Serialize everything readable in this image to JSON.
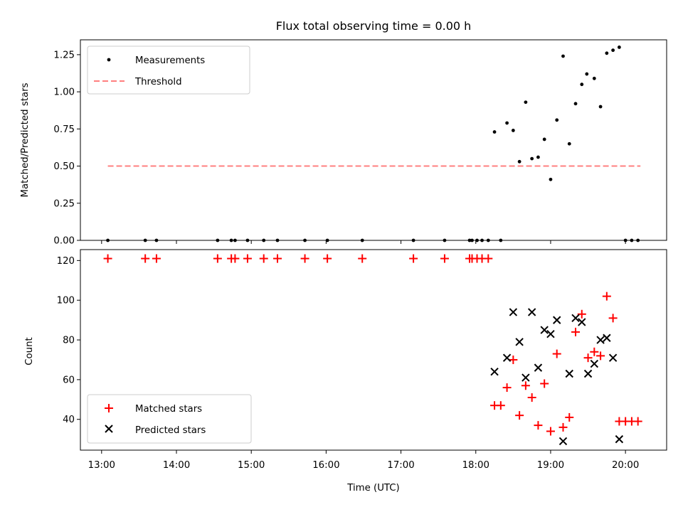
{
  "chart_data": [
    {
      "type": "scatter",
      "title": "Flux total observing time = 0.00 h",
      "xlabel": "",
      "ylabel": "Matched/Predicted stars",
      "ylim": [
        0,
        1.35
      ],
      "xlim": [
        "12:43",
        "20:33"
      ],
      "yticks": [
        "0.00",
        "0.25",
        "0.50",
        "0.75",
        "1.00",
        "1.25"
      ],
      "legend_position": "upper-left",
      "series": [
        {
          "name": "Measurements",
          "marker": "dot",
          "color": "#000000",
          "points": [
            {
              "x": "13:05",
              "y": 0
            },
            {
              "x": "13:35",
              "y": 0
            },
            {
              "x": "13:44",
              "y": 0
            },
            {
              "x": "14:33",
              "y": 0
            },
            {
              "x": "14:44",
              "y": 0
            },
            {
              "x": "14:47",
              "y": 0
            },
            {
              "x": "14:57",
              "y": 0
            },
            {
              "x": "15:10",
              "y": 0
            },
            {
              "x": "15:21",
              "y": 0
            },
            {
              "x": "15:43",
              "y": 0
            },
            {
              "x": "16:01",
              "y": 0
            },
            {
              "x": "16:29",
              "y": 0
            },
            {
              "x": "17:10",
              "y": 0
            },
            {
              "x": "17:35",
              "y": 0
            },
            {
              "x": "17:55",
              "y": 0
            },
            {
              "x": "17:57",
              "y": 0
            },
            {
              "x": "18:01",
              "y": 0
            },
            {
              "x": "18:05",
              "y": 0
            },
            {
              "x": "18:10",
              "y": 0
            },
            {
              "x": "18:20",
              "y": 0
            },
            {
              "x": "18:15",
              "y": 0.73
            },
            {
              "x": "18:25",
              "y": 0.79
            },
            {
              "x": "18:30",
              "y": 0.74
            },
            {
              "x": "18:35",
              "y": 0.53
            },
            {
              "x": "18:40",
              "y": 0.93
            },
            {
              "x": "18:45",
              "y": 0.55
            },
            {
              "x": "18:50",
              "y": 0.56
            },
            {
              "x": "18:55",
              "y": 0.68
            },
            {
              "x": "19:00",
              "y": 0.41
            },
            {
              "x": "19:05",
              "y": 0.81
            },
            {
              "x": "19:10",
              "y": 1.24
            },
            {
              "x": "19:15",
              "y": 0.65
            },
            {
              "x": "19:20",
              "y": 0.92
            },
            {
              "x": "19:25",
              "y": 1.05
            },
            {
              "x": "19:29",
              "y": 1.12
            },
            {
              "x": "19:35",
              "y": 1.09
            },
            {
              "x": "19:40",
              "y": 0.9
            },
            {
              "x": "19:45",
              "y": 1.26
            },
            {
              "x": "19:50",
              "y": 1.28
            },
            {
              "x": "19:55",
              "y": 1.3
            },
            {
              "x": "20:00",
              "y": 0
            },
            {
              "x": "20:05",
              "y": 0
            },
            {
              "x": "20:10",
              "y": 0
            }
          ]
        },
        {
          "name": "Threshold",
          "marker": "dashed-line",
          "color": "#ff7f7f",
          "points": [
            {
              "x": "13:05",
              "y": 0.5
            },
            {
              "x": "20:12",
              "y": 0.5
            }
          ]
        }
      ]
    },
    {
      "type": "scatter",
      "title": "",
      "xlabel": "Time (UTC)",
      "ylabel": "Count",
      "ylim": [
        24.5,
        125.5
      ],
      "xlim": [
        "12:43",
        "20:33"
      ],
      "yticks": [
        "40",
        "60",
        "80",
        "100",
        "120"
      ],
      "xticks": [
        "13:00",
        "14:00",
        "15:00",
        "16:00",
        "17:00",
        "18:00",
        "19:00",
        "20:00"
      ],
      "legend_position": "lower-left",
      "series": [
        {
          "name": "Matched stars",
          "marker": "plus",
          "color": "#ff0000",
          "points": [
            {
              "x": "13:05",
              "y": 121
            },
            {
              "x": "13:35",
              "y": 121
            },
            {
              "x": "13:44",
              "y": 121
            },
            {
              "x": "14:33",
              "y": 121
            },
            {
              "x": "14:44",
              "y": 121
            },
            {
              "x": "14:47",
              "y": 121
            },
            {
              "x": "14:57",
              "y": 121
            },
            {
              "x": "15:10",
              "y": 121
            },
            {
              "x": "15:21",
              "y": 121
            },
            {
              "x": "15:43",
              "y": 121
            },
            {
              "x": "16:01",
              "y": 121
            },
            {
              "x": "16:29",
              "y": 121
            },
            {
              "x": "17:10",
              "y": 121
            },
            {
              "x": "17:35",
              "y": 121
            },
            {
              "x": "17:55",
              "y": 121
            },
            {
              "x": "17:57",
              "y": 121
            },
            {
              "x": "18:01",
              "y": 121
            },
            {
              "x": "18:05",
              "y": 121
            },
            {
              "x": "18:10",
              "y": 121
            },
            {
              "x": "18:15",
              "y": 47
            },
            {
              "x": "18:20",
              "y": 47
            },
            {
              "x": "18:25",
              "y": 56
            },
            {
              "x": "18:30",
              "y": 70
            },
            {
              "x": "18:35",
              "y": 42
            },
            {
              "x": "18:40",
              "y": 57
            },
            {
              "x": "18:45",
              "y": 51
            },
            {
              "x": "18:50",
              "y": 37
            },
            {
              "x": "18:55",
              "y": 58
            },
            {
              "x": "19:00",
              "y": 34
            },
            {
              "x": "19:05",
              "y": 73
            },
            {
              "x": "19:10",
              "y": 36
            },
            {
              "x": "19:15",
              "y": 41
            },
            {
              "x": "19:20",
              "y": 84
            },
            {
              "x": "19:25",
              "y": 93
            },
            {
              "x": "19:30",
              "y": 71
            },
            {
              "x": "19:35",
              "y": 74
            },
            {
              "x": "19:40",
              "y": 72
            },
            {
              "x": "19:45",
              "y": 102
            },
            {
              "x": "19:50",
              "y": 91
            },
            {
              "x": "19:55",
              "y": 39
            },
            {
              "x": "20:00",
              "y": 39
            },
            {
              "x": "20:05",
              "y": 39
            },
            {
              "x": "20:10",
              "y": 39
            }
          ]
        },
        {
          "name": "Predicted stars",
          "marker": "x",
          "color": "#000000",
          "points": [
            {
              "x": "18:15",
              "y": 64
            },
            {
              "x": "18:25",
              "y": 71
            },
            {
              "x": "18:30",
              "y": 94
            },
            {
              "x": "18:35",
              "y": 79
            },
            {
              "x": "18:40",
              "y": 61
            },
            {
              "x": "18:45",
              "y": 94
            },
            {
              "x": "18:50",
              "y": 66
            },
            {
              "x": "18:55",
              "y": 85
            },
            {
              "x": "19:00",
              "y": 83
            },
            {
              "x": "19:05",
              "y": 90
            },
            {
              "x": "19:10",
              "y": 29
            },
            {
              "x": "19:15",
              "y": 63
            },
            {
              "x": "19:20",
              "y": 91
            },
            {
              "x": "19:25",
              "y": 89
            },
            {
              "x": "19:30",
              "y": 63
            },
            {
              "x": "19:35",
              "y": 68
            },
            {
              "x": "19:40",
              "y": 80
            },
            {
              "x": "19:45",
              "y": 81
            },
            {
              "x": "19:50",
              "y": 71
            },
            {
              "x": "19:55",
              "y": 30
            }
          ]
        }
      ]
    }
  ]
}
